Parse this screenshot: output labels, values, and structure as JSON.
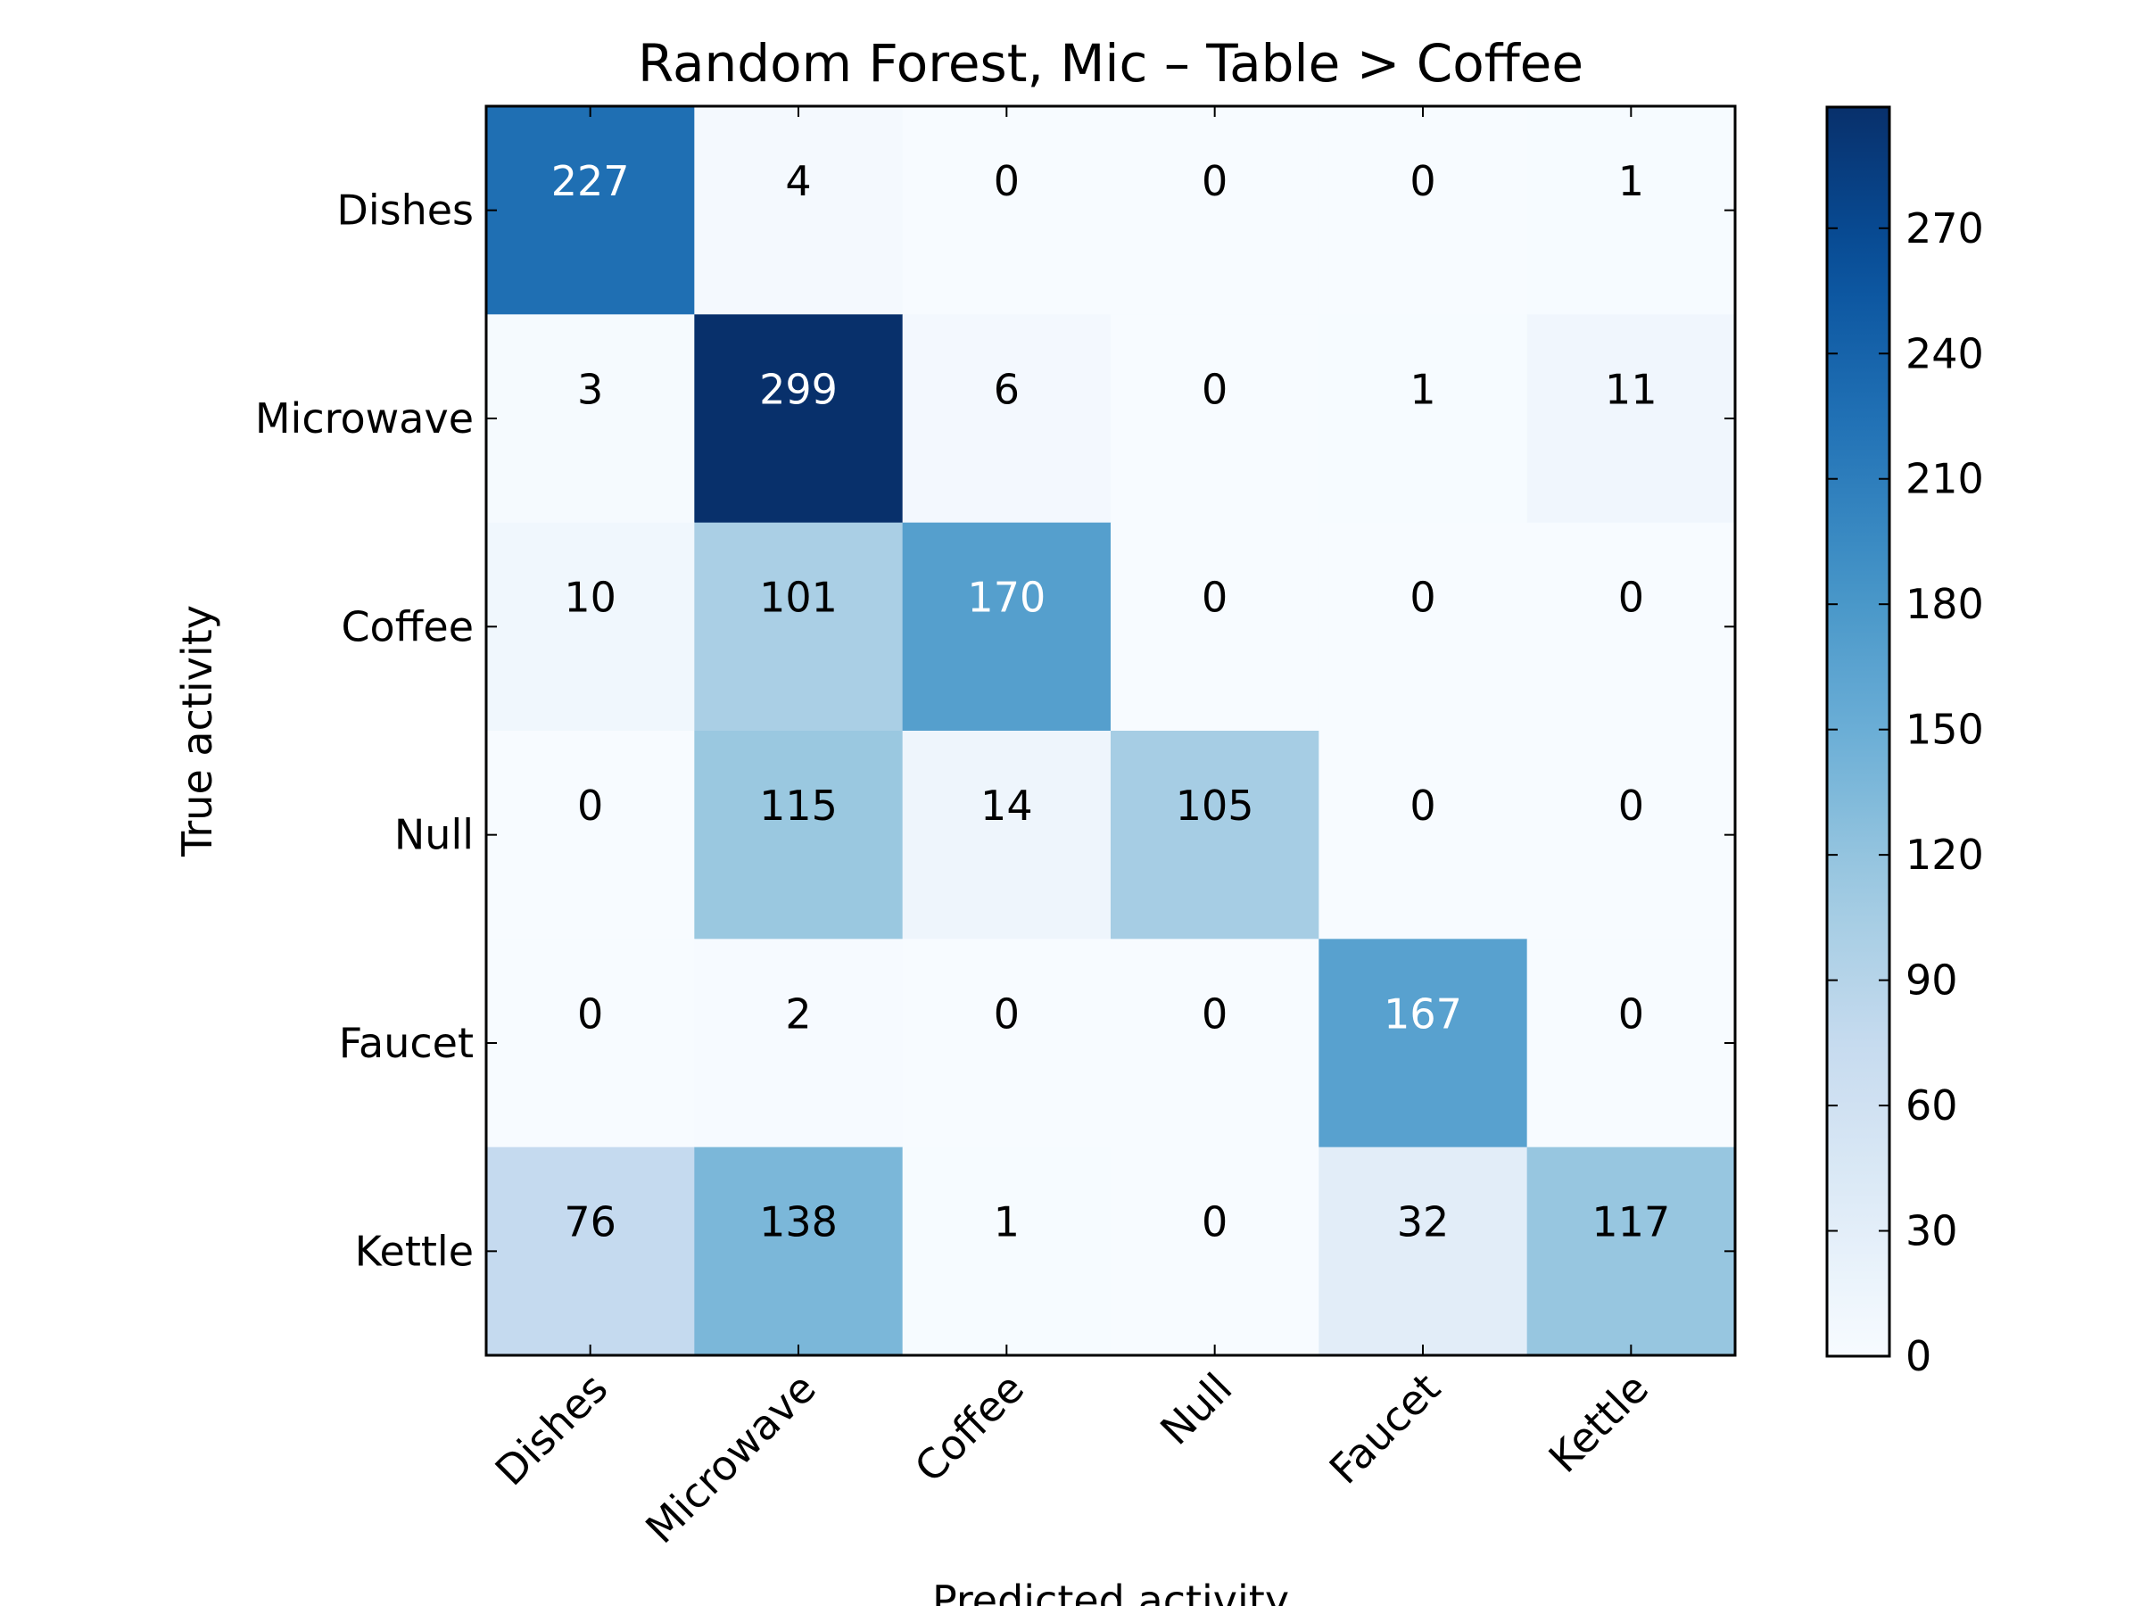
{
  "chart_data": {
    "type": "heatmap",
    "title": "Random Forest, Mic – Table > Coffee",
    "xlabel": "Predicted activity",
    "ylabel": "True activity",
    "x_categories": [
      "Dishes",
      "Microwave",
      "Coffee",
      "Null",
      "Faucet",
      "Kettle"
    ],
    "y_categories": [
      "Dishes",
      "Microwave",
      "Coffee",
      "Null",
      "Faucet",
      "Kettle"
    ],
    "values": [
      [
        227,
        4,
        0,
        0,
        0,
        1
      ],
      [
        3,
        299,
        6,
        0,
        1,
        11
      ],
      [
        10,
        101,
        170,
        0,
        0,
        0
      ],
      [
        0,
        115,
        14,
        105,
        0,
        0
      ],
      [
        0,
        2,
        0,
        0,
        167,
        0
      ],
      [
        76,
        138,
        1,
        0,
        32,
        117
      ]
    ],
    "colormap": "Blues",
    "colorbar": {
      "min": 0,
      "max": 299,
      "ticks": [
        0,
        30,
        60,
        90,
        120,
        150,
        180,
        210,
        240,
        270
      ]
    },
    "grid": false,
    "x_tick_rotation_deg": 45,
    "colors": {
      "cmap_low": "#f7fbff",
      "cmap_high": "#08306b",
      "text_dark": "#000000",
      "text_light": "#ffffff",
      "frame": "#000000"
    }
  }
}
